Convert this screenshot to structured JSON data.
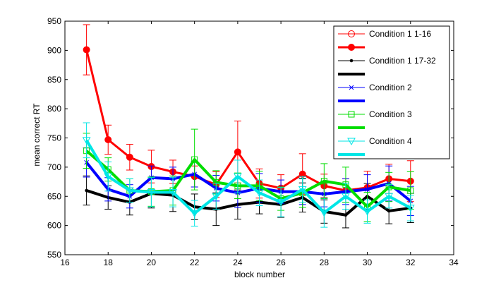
{
  "chart_data": {
    "type": "line",
    "title": "",
    "xlabel": "block number",
    "ylabel": "mean correct RT",
    "xlim": [
      16,
      34
    ],
    "ylim": [
      550,
      950
    ],
    "xticks": [
      16,
      18,
      20,
      22,
      24,
      26,
      28,
      30,
      32,
      34
    ],
    "yticks": [
      550,
      600,
      650,
      700,
      750,
      800,
      850,
      900,
      950
    ],
    "legend_position": "top-right",
    "x": [
      17,
      18,
      19,
      20,
      21,
      22,
      23,
      24,
      25,
      26,
      27,
      28,
      29,
      30,
      31,
      32
    ],
    "series": [
      {
        "name": "Condition 1 1-16",
        "color": "#ff0000",
        "marker": "circle",
        "values": [
          901,
          747,
          717,
          701,
          692,
          684,
          670,
          726,
          672,
          664,
          688,
          668,
          660,
          665,
          680,
          676
        ],
        "errors": [
          43,
          25,
          22,
          28,
          20,
          18,
          22,
          53,
          25,
          23,
          35,
          20,
          20,
          28,
          25,
          35
        ]
      },
      {
        "name": "Condition 1 17-32",
        "color": "#000000",
        "marker": "dot",
        "values": [
          660,
          648,
          640,
          655,
          652,
          632,
          628,
          636,
          640,
          636,
          648,
          624,
          618,
          650,
          625,
          630
        ],
        "errors": [
          25,
          20,
          22,
          25,
          28,
          22,
          28,
          25,
          20,
          22,
          25,
          20,
          22,
          22,
          22,
          25
        ]
      },
      {
        "name": "Condition 2",
        "color": "#0000ff",
        "marker": "x",
        "values": [
          708,
          662,
          650,
          682,
          680,
          688,
          664,
          656,
          664,
          658,
          658,
          654,
          658,
          662,
          672,
          642
        ],
        "errors": [
          25,
          20,
          20,
          20,
          20,
          22,
          22,
          25,
          25,
          20,
          22,
          22,
          22,
          25,
          30,
          25
        ]
      },
      {
        "name": "Condition 3",
        "color": "#00dd00",
        "marker": "square",
        "values": [
          728,
          696,
          660,
          658,
          660,
          713,
          674,
          668,
          668,
          646,
          656,
          676,
          670,
          632,
          666,
          660
        ],
        "errors": [
          30,
          20,
          20,
          25,
          25,
          52,
          20,
          22,
          25,
          20,
          25,
          30,
          30,
          25,
          25,
          32
        ]
      },
      {
        "name": "Condition 4",
        "color": "#00e6e6",
        "marker": "triangle-down",
        "values": [
          746,
          684,
          660,
          657,
          657,
          621,
          650,
          684,
          656,
          640,
          662,
          622,
          650,
          624,
          650,
          630
        ],
        "errors": [
          30,
          25,
          20,
          25,
          25,
          22,
          22,
          28,
          22,
          25,
          22,
          25,
          22,
          20,
          20,
          22
        ]
      }
    ]
  }
}
